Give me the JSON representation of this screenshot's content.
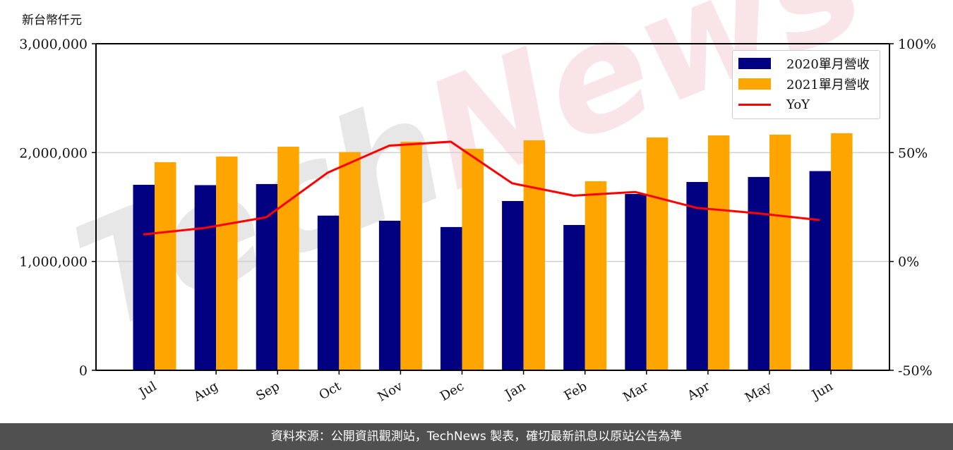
{
  "chart_data": {
    "type": "bar",
    "title": "",
    "y_unit_label": "新台幣仟元",
    "categories": [
      "Jul",
      "Aug",
      "Sep",
      "Oct",
      "Nov",
      "Dec",
      "Jan",
      "Feb",
      "Mar",
      "Apr",
      "May",
      "Jun"
    ],
    "series": [
      {
        "name": "2020單月營收",
        "type": "bar",
        "axis": "left",
        "color": "#000080",
        "values": [
          1704000,
          1701000,
          1711000,
          1421000,
          1374000,
          1316000,
          1555000,
          1335000,
          1620000,
          1730000,
          1776000,
          1830000
        ]
      },
      {
        "name": "2021單月營收",
        "type": "bar",
        "axis": "left",
        "color": "#FFA500",
        "values": [
          1912000,
          1964000,
          2054000,
          2005000,
          2100000,
          2035000,
          2113000,
          1737000,
          2139000,
          2158000,
          2165000,
          2178000
        ]
      },
      {
        "name": "YoY",
        "type": "line",
        "axis": "right",
        "color": "#FF0000",
        "values": [
          12.4,
          15.4,
          20.3,
          40.8,
          53.2,
          55.0,
          35.9,
          30.2,
          31.9,
          24.6,
          22.1,
          19.0
        ]
      }
    ],
    "left_axis": {
      "ylim": [
        0,
        3000000
      ],
      "ticks": [
        0,
        1000000,
        2000000,
        3000000
      ],
      "tick_labels": [
        "0",
        "1,000,000",
        "2,000,000",
        "3,000,000"
      ]
    },
    "right_axis": {
      "ylim": [
        -50,
        100
      ],
      "ticks": [
        -50,
        0,
        50,
        100
      ],
      "tick_labels": [
        "-50%",
        "0%",
        "50%",
        "100%"
      ]
    },
    "xlabel": "",
    "ylabel": "新台幣仟元",
    "grid": "horizontal",
    "legend_position": "upper right",
    "watermark": {
      "text_a": "Tech",
      "text_b": "News",
      "color_a": "#e0e0e0",
      "color_b": "#f7dde0"
    }
  },
  "legend": {
    "items": [
      {
        "label": "2020單月營收",
        "kind": "bar",
        "color": "#000080"
      },
      {
        "label": "2021單月營收",
        "kind": "bar",
        "color": "#FFA500"
      },
      {
        "label": "YoY",
        "kind": "line",
        "color": "#FF0000"
      }
    ]
  },
  "footer": {
    "text": "資料來源：公開資訊觀測站，TechNews 製表，確切最新訊息以原站公告為準"
  }
}
